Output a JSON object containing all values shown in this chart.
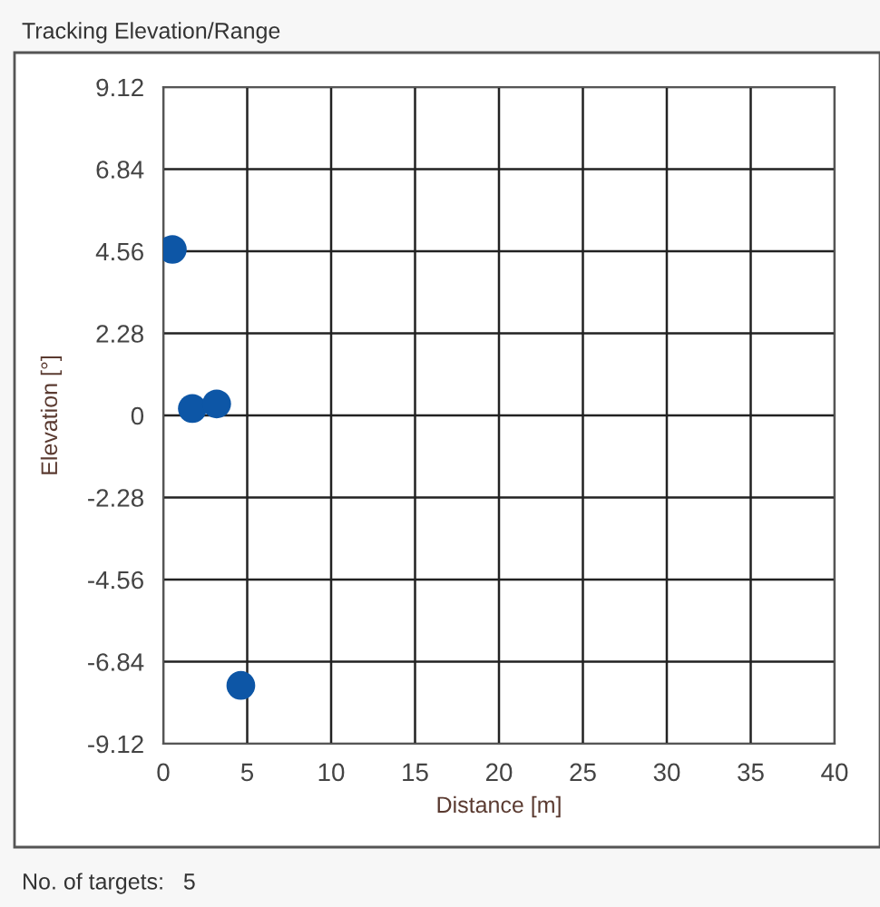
{
  "chart_data": {
    "type": "scatter",
    "title": "Tracking Elevation/Range",
    "xlabel": "Distance [m]",
    "ylabel": "Elevation [°]",
    "x": [
      0.54,
      1.73,
      3.18,
      4.62
    ],
    "series": [
      {
        "color": "#0d56a6",
        "values": [
          4.61,
          0.19,
          0.32,
          -7.5
        ]
      }
    ],
    "xlim": [
      0,
      40
    ],
    "xticks": [
      0,
      5,
      10,
      15,
      20,
      25,
      30,
      35,
      40
    ],
    "ylim": [
      -9.12,
      9.12
    ],
    "yticks": [
      -9.12,
      -6.84,
      -4.56,
      -2.28,
      0,
      2.28,
      4.56,
      6.84,
      9.12
    ],
    "grid": true,
    "marker": "circle",
    "annotations": [
      "No. of targets:   5"
    ]
  }
}
